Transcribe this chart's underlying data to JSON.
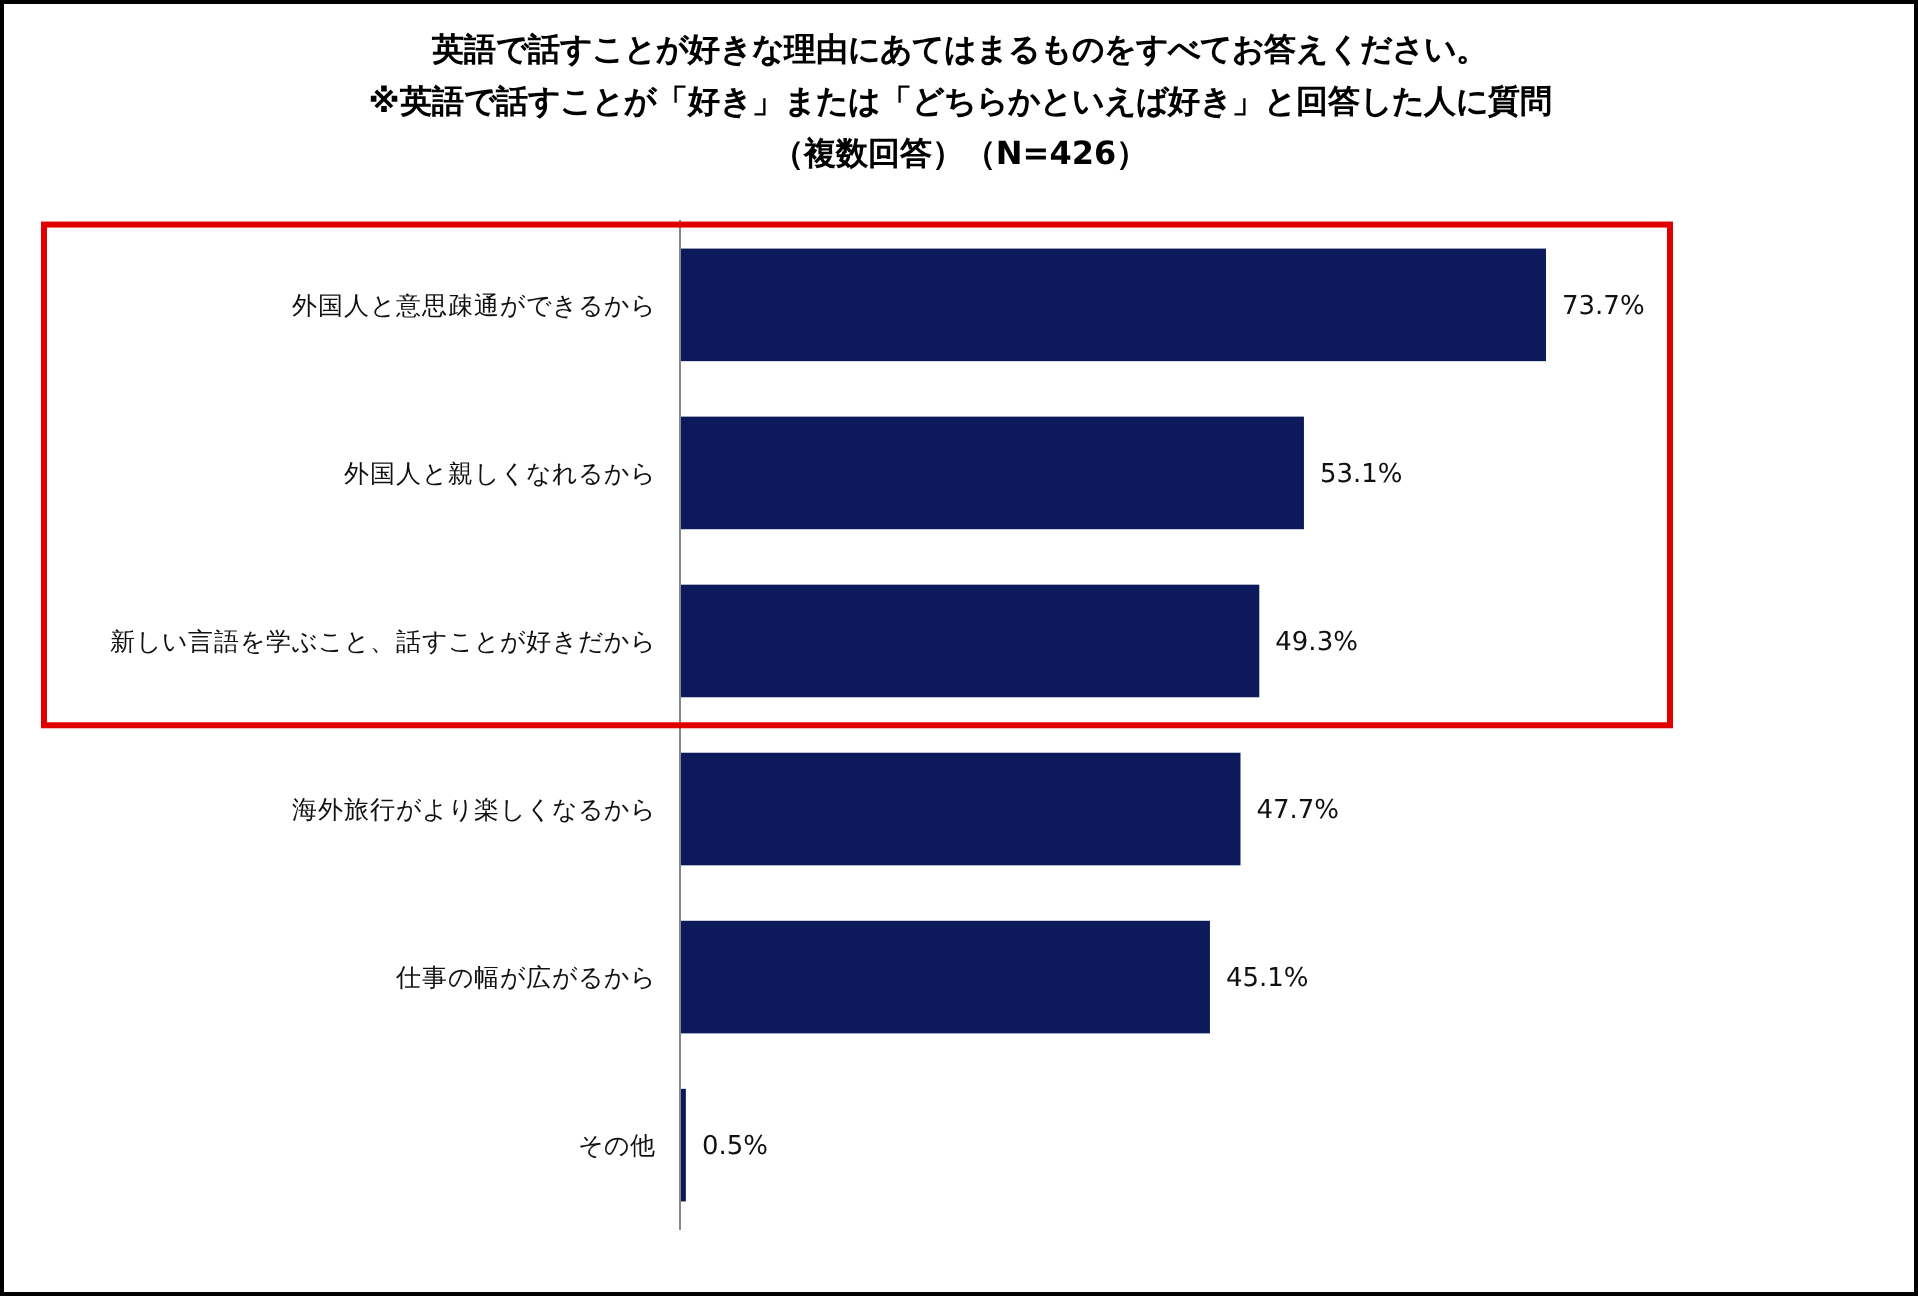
{
  "chart_data": {
    "type": "bar",
    "orientation": "horizontal",
    "title": "英語で話すことが好きな理由にあてはまるものをすべてお答えください。",
    "subtitle": "※英語で話すことが「好き」または「どちらかといえば好き」と回答した人に質問",
    "annotations": [
      "（複数回答）（N=426）"
    ],
    "categories": [
      "外国人と意思疎通ができるから",
      "外国人と親しくなれるから",
      "新しい言語を学ぶこと、話すことが好きだから",
      "海外旅行がより楽しくなるから",
      "仕事の幅が広がるから",
      "その他"
    ],
    "values": [
      73.7,
      53.1,
      49.3,
      47.7,
      45.1,
      0.5
    ],
    "value_labels": [
      "73.7%",
      "53.1%",
      "49.3%",
      "47.7%",
      "45.1%",
      "0.5%"
    ],
    "color": "#0c1a5c",
    "tick_labels": "y"
  }
}
